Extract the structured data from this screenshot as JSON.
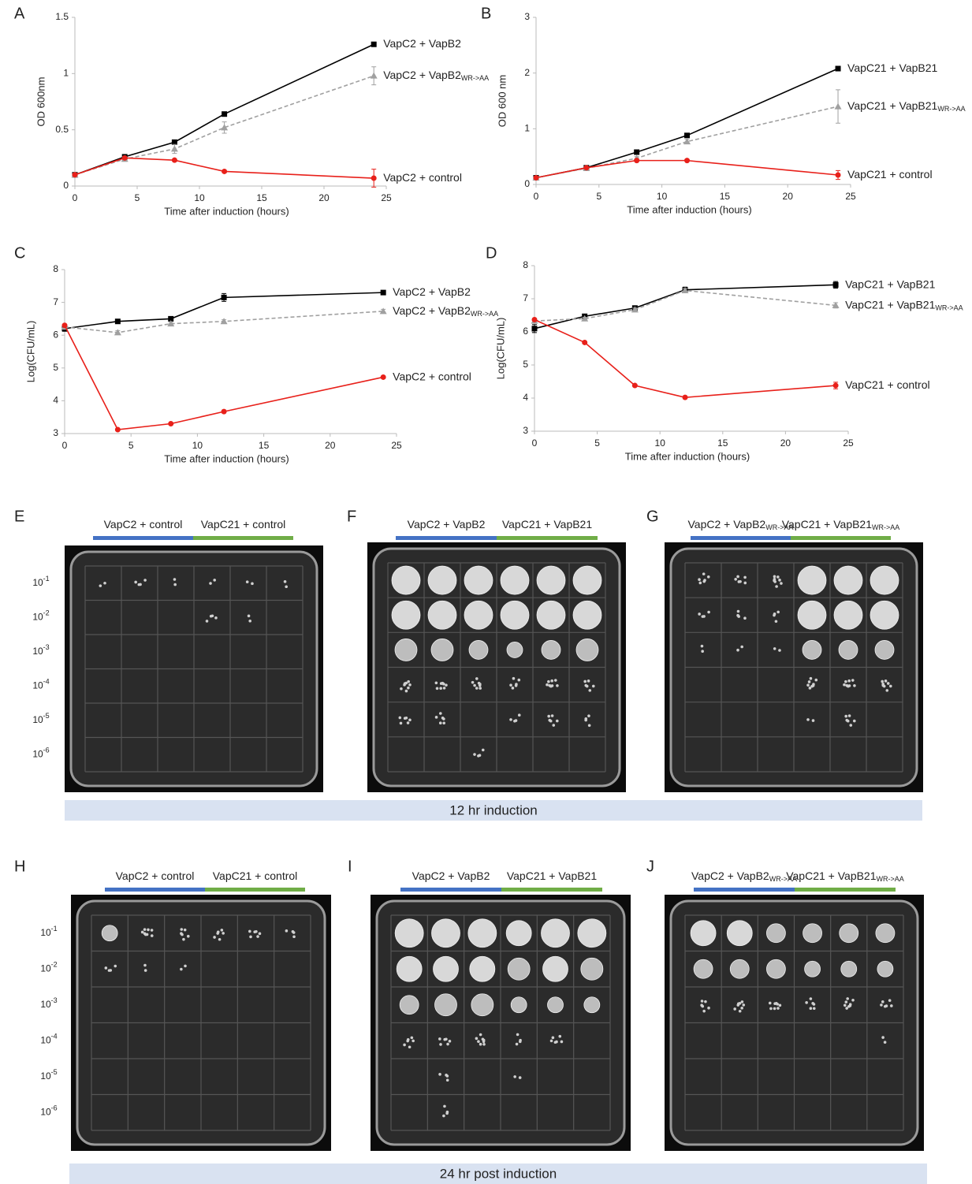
{
  "chart_data": [
    {
      "type": "line",
      "label": "A",
      "xlabel": "Time after induction (hours)",
      "ylabel": "OD 600nm",
      "x": [
        0,
        4,
        8,
        12,
        24
      ],
      "xlim": [
        0,
        25
      ],
      "xticks": [
        0,
        5,
        10,
        15,
        20,
        25
      ],
      "ylim": [
        0,
        1.5
      ],
      "yticks": [
        0,
        0.5,
        1,
        1.5
      ],
      "series": [
        {
          "name": "VapC2 + VapB2",
          "color": "#000000",
          "marker": "square",
          "dashed": false,
          "values": [
            0.1,
            0.26,
            0.39,
            0.64,
            1.26
          ],
          "errors": [
            0.01,
            0.01,
            0.01,
            0.01,
            0.01
          ]
        },
        {
          "name": "VapC2 + VapB2",
          "subscript": "WR->AA",
          "color": "#a0a0a0",
          "marker": "triangle",
          "dashed": true,
          "values": [
            0.1,
            0.24,
            0.33,
            0.52,
            0.98
          ],
          "errors": [
            0.01,
            0.02,
            0.04,
            0.05,
            0.08
          ]
        },
        {
          "name": "VapC2 + control",
          "color": "#e8201a",
          "marker": "circle",
          "dashed": false,
          "values": [
            0.1,
            0.25,
            0.23,
            0.13,
            0.07
          ],
          "errors": [
            0.01,
            0.01,
            0.01,
            0.01,
            0.08
          ]
        }
      ]
    },
    {
      "type": "line",
      "label": "B",
      "xlabel": "Time after induction (hours)",
      "ylabel": "OD 600 nm",
      "x": [
        0,
        4,
        8,
        12,
        24
      ],
      "xlim": [
        0,
        25
      ],
      "xticks": [
        0,
        5,
        10,
        15,
        20,
        25
      ],
      "ylim": [
        0,
        3
      ],
      "yticks": [
        0,
        1,
        2,
        3
      ],
      "series": [
        {
          "name": "VapC21 + VapB21",
          "color": "#000000",
          "marker": "square",
          "dashed": false,
          "values": [
            0.12,
            0.3,
            0.58,
            0.88,
            2.08
          ],
          "errors": [
            0.01,
            0.01,
            0.02,
            0.02,
            0.02
          ]
        },
        {
          "name": "VapC21 + VapB21",
          "subscript": "WR->AA",
          "color": "#a0a0a0",
          "marker": "triangle",
          "dashed": true,
          "values": [
            0.12,
            0.29,
            0.47,
            0.77,
            1.4
          ],
          "errors": [
            0.01,
            0.02,
            0.03,
            0.04,
            0.3
          ]
        },
        {
          "name": "VapC21 + control",
          "color": "#e8201a",
          "marker": "circle",
          "dashed": false,
          "values": [
            0.12,
            0.3,
            0.43,
            0.43,
            0.17
          ],
          "errors": [
            0.01,
            0.01,
            0.01,
            0.01,
            0.08
          ]
        }
      ]
    },
    {
      "type": "line",
      "label": "C",
      "xlabel": "Time after induction (hours)",
      "ylabel": "Log(CFU/mL)",
      "x": [
        0,
        4,
        8,
        12,
        24
      ],
      "xlim": [
        0,
        25
      ],
      "xticks": [
        0,
        5,
        10,
        15,
        20,
        25
      ],
      "ylim": [
        3,
        8
      ],
      "yticks": [
        3,
        4,
        5,
        6,
        7,
        8
      ],
      "series": [
        {
          "name": "VapC2 + VapB2",
          "color": "#000000",
          "marker": "square",
          "dashed": false,
          "values": [
            6.2,
            6.42,
            6.5,
            7.15,
            7.3
          ],
          "errors": [
            0.08,
            0.02,
            0.03,
            0.12,
            0.03
          ]
        },
        {
          "name": "VapC2 + VapB2",
          "subscript": "WR->AA",
          "color": "#a0a0a0",
          "marker": "triangle",
          "dashed": true,
          "values": [
            6.25,
            6.08,
            6.35,
            6.42,
            6.73
          ],
          "errors": [
            0.05,
            0.06,
            0.04,
            0.05,
            0.06
          ]
        },
        {
          "name": "VapC2 + control",
          "color": "#e8201a",
          "marker": "circle",
          "dashed": false,
          "values": [
            6.3,
            3.12,
            3.3,
            3.67,
            4.72
          ],
          "errors": [
            0.03,
            0.02,
            0.02,
            0.02,
            0.03
          ]
        }
      ]
    },
    {
      "type": "line",
      "label": "D",
      "xlabel": "Time after induction (hours)",
      "ylabel": "Log(CFU/mL)",
      "x": [
        0,
        4,
        8,
        12,
        24
      ],
      "xlim": [
        0,
        25
      ],
      "xticks": [
        0,
        5,
        10,
        15,
        20,
        25
      ],
      "ylim": [
        3,
        8
      ],
      "yticks": [
        3,
        4,
        5,
        6,
        7,
        8
      ],
      "series": [
        {
          "name": "VapC21 + VapB21",
          "color": "#000000",
          "marker": "square",
          "dashed": false,
          "values": [
            6.1,
            6.47,
            6.72,
            7.27,
            7.42
          ],
          "errors": [
            0.12,
            0.05,
            0.05,
            0.08,
            0.1
          ]
        },
        {
          "name": "VapC21 + VapB21",
          "subscript": "WR->AA",
          "color": "#a0a0a0",
          "marker": "triangle",
          "dashed": true,
          "values": [
            6.33,
            6.4,
            6.67,
            7.25,
            6.8
          ],
          "errors": [
            0.04,
            0.04,
            0.05,
            0.06,
            0.08
          ]
        },
        {
          "name": "VapC21 + control",
          "color": "#e8201a",
          "marker": "circle",
          "dashed": false,
          "values": [
            6.37,
            5.68,
            4.38,
            4.02,
            4.38
          ],
          "errors": [
            0.03,
            0.02,
            0.02,
            0.02,
            0.1
          ]
        }
      ]
    }
  ],
  "plates": [
    {
      "letter": "E",
      "headers": [
        {
          "text": "VapC2 + control"
        },
        {
          "text": "VapC21 + control"
        }
      ],
      "dilutions": [
        {
          "base": "10",
          "exp": "-1"
        },
        {
          "base": "10",
          "exp": "-2"
        },
        {
          "base": "10",
          "exp": "-3"
        },
        {
          "base": "10",
          "exp": "-4"
        },
        {
          "base": "10",
          "exp": "-5"
        },
        {
          "base": "10",
          "exp": "-6"
        }
      ]
    },
    {
      "letter": "F",
      "headers": [
        {
          "text": "VapC2 + VapB2"
        },
        {
          "text": "VapC21 + VapB21"
        }
      ]
    },
    {
      "letter": "G",
      "headers": [
        {
          "text": "VapC2 + VapB2",
          "sub": "WR->AA"
        },
        {
          "text": "VapC21 + VapB21",
          "sub": "WR->AA"
        }
      ]
    },
    {
      "letter": "H",
      "headers": [
        {
          "text": "VapC2 + control"
        },
        {
          "text": "VapC21 + control"
        }
      ],
      "dilutions": [
        {
          "base": "10",
          "exp": "-1"
        },
        {
          "base": "10",
          "exp": "-2"
        },
        {
          "base": "10",
          "exp": "-3"
        },
        {
          "base": "10",
          "exp": "-4"
        },
        {
          "base": "10",
          "exp": "-5"
        },
        {
          "base": "10",
          "exp": "-6"
        }
      ]
    },
    {
      "letter": "I",
      "headers": [
        {
          "text": "VapC2 + VapB2"
        },
        {
          "text": "VapC21 + VapB21"
        }
      ]
    },
    {
      "letter": "J",
      "headers": [
        {
          "text": "VapC2 + VapB2",
          "sub": "WR->AA"
        },
        {
          "text": "VapC21 + VapB21",
          "sub": "WR->AA"
        }
      ]
    }
  ],
  "banners": [
    "12 hr induction",
    "24 hr post induction"
  ]
}
